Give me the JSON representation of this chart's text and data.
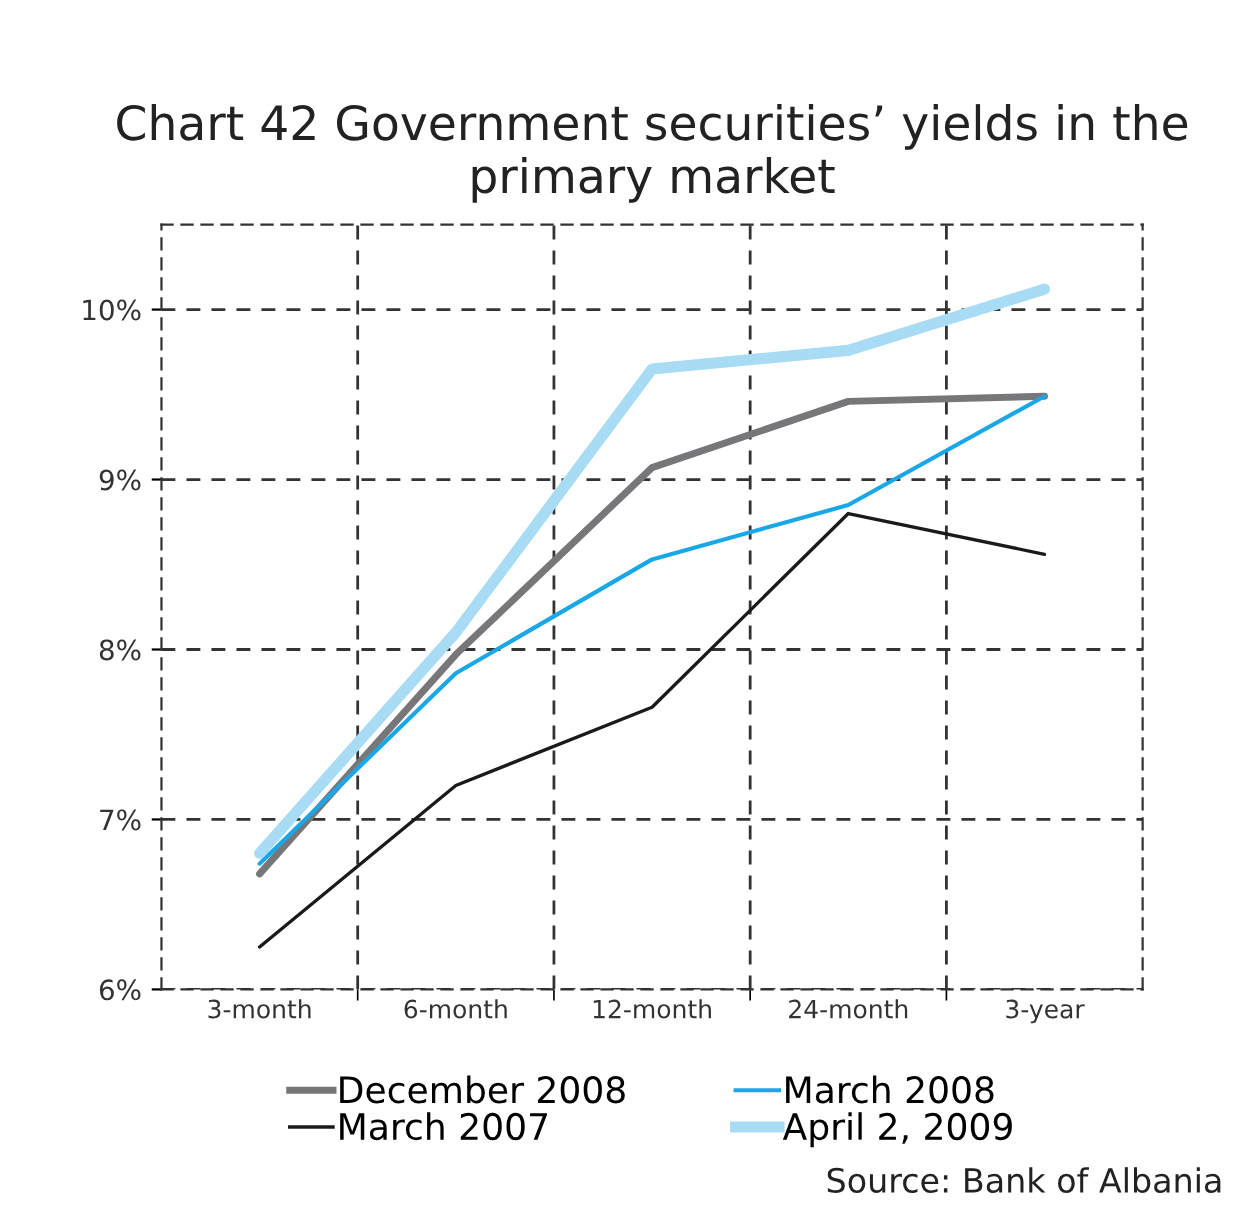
{
  "chart_data": {
    "type": "line",
    "title": "Chart 42 Government securities’ yields in the primary market",
    "categories": [
      "3-month",
      "6-month",
      "12-month",
      "24-month",
      "3-year"
    ],
    "series": [
      {
        "name": "December 2008",
        "color": "#77777a",
        "values": [
          6.68,
          7.97,
          9.07,
          9.46,
          9.49
        ]
      },
      {
        "name": "March 2007",
        "color": "#1a1a1a",
        "values": [
          6.25,
          7.2,
          7.66,
          8.8,
          8.56
        ]
      },
      {
        "name": "March 2008",
        "color": "#1aa7e8",
        "values": [
          6.74,
          7.86,
          8.53,
          8.85,
          9.49
        ]
      },
      {
        "name": "April 2, 2009",
        "color": "#a8dcf5",
        "values": [
          6.8,
          8.1,
          9.65,
          9.76,
          10.12
        ]
      }
    ],
    "ylim": [
      6,
      10.5
    ],
    "yticks": [
      {
        "value": 6,
        "label": "6%"
      },
      {
        "value": 7,
        "label": "7%"
      },
      {
        "value": 8,
        "label": "8%"
      },
      {
        "value": 9,
        "label": "9%"
      },
      {
        "value": 10,
        "label": "10%"
      }
    ],
    "grid": true,
    "legend": "bottom",
    "marker": "none",
    "line_style": "solid",
    "annotations": [
      "Source: Bank of Albania"
    ]
  }
}
